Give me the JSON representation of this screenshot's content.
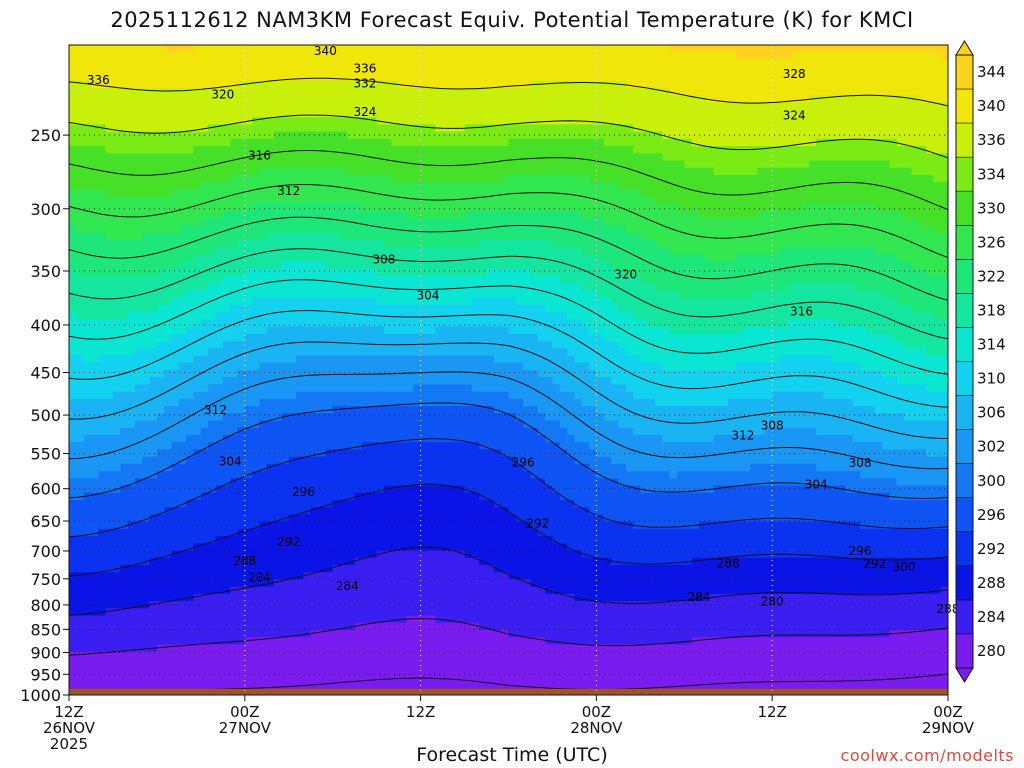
{
  "chart_data": {
    "type": "heatmap",
    "title": "2025112612 NAM3KM Forecast Equiv. Potential Temperature (K) for KMCI",
    "xlabel": "Forecast Time (UTC)",
    "ylabel": "",
    "y_scale": "log-pressure (hPa), inverted",
    "ylim": [
      1000,
      200
    ],
    "y_ticks": [
      250,
      300,
      350,
      400,
      450,
      500,
      550,
      600,
      650,
      700,
      750,
      800,
      850,
      900,
      950,
      1000
    ],
    "x_ticks": [
      {
        "hour": 0,
        "lines": [
          "12Z",
          "26NOV",
          "2025"
        ]
      },
      {
        "hour": 12,
        "lines": [
          "00Z",
          "27NOV"
        ]
      },
      {
        "hour": 24,
        "lines": [
          "12Z"
        ]
      },
      {
        "hour": 36,
        "lines": [
          "00Z",
          "28NOV"
        ]
      },
      {
        "hour": 48,
        "lines": [
          "12Z"
        ]
      },
      {
        "hour": 60,
        "lines": [
          "00Z",
          "29NOV"
        ]
      }
    ],
    "xlim_hours": [
      0,
      60
    ],
    "colorbar": {
      "levels": [
        280,
        284,
        288,
        292,
        296,
        300,
        302,
        306,
        310,
        314,
        318,
        322,
        326,
        330,
        334,
        336,
        340,
        344
      ],
      "colors": [
        "#7a1cf0",
        "#3a1ef2",
        "#0a14e6",
        "#0a32f0",
        "#0f55f5",
        "#1478f5",
        "#1a96f5",
        "#1ab4f5",
        "#12d2f0",
        "#0ae6d2",
        "#14e6a0",
        "#1ee678",
        "#32e650",
        "#46e028",
        "#7aeb14",
        "#c8f00a",
        "#f0e60a",
        "#ffd21e"
      ]
    },
    "contour_levels": [
      280,
      284,
      288,
      292,
      296,
      300,
      304,
      308,
      312,
      316,
      320,
      324,
      328,
      332,
      336,
      340
    ],
    "contour_labels": [
      "336",
      "340",
      "336",
      "332",
      "320",
      "324",
      "328",
      "324",
      "316",
      "312",
      "308",
      "320",
      "304",
      "316",
      "312",
      "308",
      "312",
      "304",
      "296",
      "308",
      "304",
      "296",
      "292",
      "292",
      "296",
      "288",
      "292",
      "300",
      "284",
      "288",
      "284",
      "284",
      "280",
      "288"
    ],
    "ground_surface_hpa": 985,
    "grid": true
  },
  "footer": {
    "credit": "coolwx.com/modelts"
  },
  "colors": {
    "ground": "#a0522d",
    "grid": "#222222",
    "background": "#ffffff"
  }
}
